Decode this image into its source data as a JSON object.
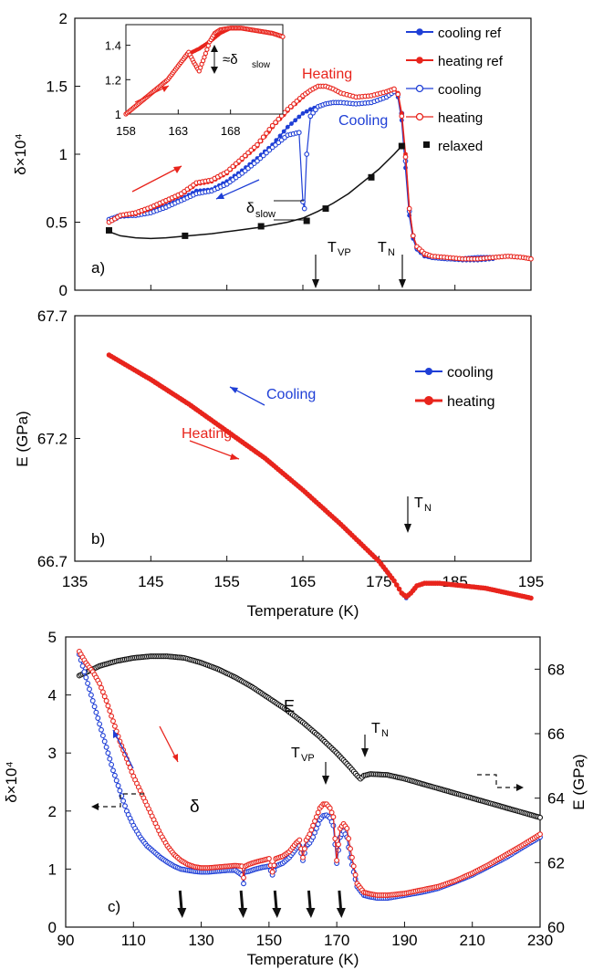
{
  "chart_data": [
    {
      "panel": "a)",
      "type": "line",
      "xlim": [
        135,
        195
      ],
      "ylim": [
        0,
        2
      ],
      "ylabel": "δ×10⁴",
      "yticks": [
        "0",
        "0.5",
        "1",
        "1.5",
        "2"
      ],
      "legend_position": "top-right",
      "series": [
        {
          "name": "cooling ref",
          "color": "#1f3fd6",
          "marker": "filled-circle",
          "x": [
            139.5,
            141,
            143,
            145,
            147,
            149,
            151,
            153,
            155,
            157,
            159,
            161,
            163,
            165,
            166,
            167,
            168,
            169,
            170,
            172,
            174,
            176,
            177,
            177.5,
            178,
            178.5,
            179,
            179.5,
            180,
            181,
            182,
            184,
            186,
            188,
            190
          ],
          "y": [
            0.5,
            0.54,
            0.55,
            0.58,
            0.62,
            0.67,
            0.73,
            0.74,
            0.8,
            0.88,
            0.97,
            1.07,
            1.2,
            1.3,
            1.33,
            1.35,
            1.37,
            1.38,
            1.38,
            1.37,
            1.38,
            1.42,
            1.46,
            1.42,
            1.25,
            0.9,
            0.55,
            0.38,
            0.3,
            0.25,
            0.24,
            0.23,
            0.22,
            0.22,
            0.23
          ]
        },
        {
          "name": "heating ref",
          "color": "#e8241c",
          "marker": "filled-circle",
          "x": [
            139.5,
            141,
            143,
            145,
            147,
            149,
            151,
            153,
            155,
            157,
            159,
            161,
            163,
            165,
            166,
            167,
            168,
            169,
            170,
            172,
            174,
            176,
            177,
            177.5,
            178,
            178.5,
            179,
            179.5,
            180,
            181,
            182,
            184,
            186,
            188,
            190
          ],
          "y": [
            0.5,
            0.55,
            0.56,
            0.6,
            0.65,
            0.7,
            0.78,
            0.8,
            0.86,
            0.96,
            1.06,
            1.2,
            1.32,
            1.42,
            1.47,
            1.5,
            1.5,
            1.48,
            1.45,
            1.42,
            1.43,
            1.46,
            1.48,
            1.45,
            1.3,
            1.0,
            0.6,
            0.4,
            0.32,
            0.26,
            0.25,
            0.24,
            0.23,
            0.23,
            0.24
          ]
        },
        {
          "name": "cooling",
          "color": "#1f3fd6",
          "marker": "open-circle",
          "x": [
            139.5,
            141,
            143,
            145,
            147,
            149,
            151,
            153,
            155,
            157,
            159,
            161,
            163,
            164.5,
            165,
            165.2,
            165.5,
            166,
            167,
            168,
            169,
            170,
            172,
            174,
            176,
            177,
            177.5,
            178,
            178.5,
            179,
            179.5,
            180,
            181,
            182,
            184,
            186,
            188,
            190
          ],
          "y": [
            0.52,
            0.55,
            0.55,
            0.57,
            0.61,
            0.66,
            0.71,
            0.73,
            0.78,
            0.86,
            0.95,
            1.05,
            1.14,
            1.16,
            0.65,
            0.6,
            1.0,
            1.28,
            1.35,
            1.37,
            1.38,
            1.38,
            1.37,
            1.38,
            1.42,
            1.46,
            1.44,
            1.3,
            0.95,
            0.58,
            0.4,
            0.31,
            0.26,
            0.24,
            0.23,
            0.23,
            0.24,
            0.24
          ]
        },
        {
          "name": "heating",
          "color": "#e8241c",
          "marker": "open-circle",
          "x": [
            139.5,
            141,
            143,
            145,
            147,
            149,
            151,
            153,
            155,
            157,
            159,
            161,
            163,
            165,
            166,
            167,
            168,
            169,
            170,
            172,
            174,
            176,
            177,
            177.5,
            178,
            178.5,
            179,
            179.5,
            180,
            181,
            182,
            184,
            186,
            188,
            190,
            192,
            194,
            195
          ],
          "y": [
            0.5,
            0.55,
            0.57,
            0.61,
            0.66,
            0.71,
            0.79,
            0.81,
            0.87,
            0.97,
            1.07,
            1.21,
            1.33,
            1.43,
            1.47,
            1.5,
            1.5,
            1.48,
            1.45,
            1.42,
            1.43,
            1.46,
            1.48,
            1.44,
            1.28,
            0.98,
            0.6,
            0.4,
            0.32,
            0.27,
            0.25,
            0.24,
            0.23,
            0.23,
            0.24,
            0.25,
            0.24,
            0.23
          ]
        },
        {
          "name": "relaxed",
          "color": "#111111",
          "marker": "filled-square",
          "x": [
            139.5,
            149.5,
            159.5,
            165.5,
            168,
            174,
            178
          ],
          "y": [
            0.44,
            0.4,
            0.47,
            0.51,
            0.6,
            0.83,
            1.06
          ]
        }
      ],
      "fit_curve": {
        "x": [
          139.5,
          141,
          143,
          145,
          147,
          149,
          151,
          153,
          155,
          157,
          159,
          161,
          163,
          165,
          167,
          169,
          171,
          173,
          175,
          177,
          178
        ],
        "y": [
          0.43,
          0.4,
          0.385,
          0.38,
          0.385,
          0.395,
          0.405,
          0.415,
          0.43,
          0.445,
          0.46,
          0.48,
          0.5,
          0.53,
          0.58,
          0.64,
          0.71,
          0.8,
          0.89,
          1.0,
          1.06
        ]
      },
      "annotations": [
        "Heating",
        "Cooling",
        "δslow",
        "TVP",
        "TN"
      ],
      "inset": {
        "xlim": [
          158,
          173
        ],
        "ylim": [
          1,
          1.52
        ],
        "xticks": [
          "158",
          "163",
          "168"
        ],
        "yticks": [
          "1",
          "1.2",
          "1.4"
        ],
        "annotation": "≈δslow",
        "series": [
          {
            "name": "heating",
            "x": [
              158,
              159,
              160,
              161,
              162,
              163,
              164,
              164.5,
              165,
              165.5,
              166,
              166.5,
              167,
              168,
              169,
              170,
              171,
              172,
              173
            ],
            "y": [
              1.0,
              1.05,
              1.1,
              1.15,
              1.2,
              1.28,
              1.36,
              1.3,
              1.25,
              1.33,
              1.42,
              1.47,
              1.49,
              1.5,
              1.5,
              1.49,
              1.48,
              1.47,
              1.45
            ]
          },
          {
            "name": "heating ref",
            "x": [
              158,
              159,
              160,
              161,
              162,
              163,
              164,
              165,
              166,
              167,
              168,
              169,
              170,
              171,
              172,
              173
            ],
            "y": [
              1.0,
              1.05,
              1.1,
              1.15,
              1.2,
              1.28,
              1.35,
              1.38,
              1.42,
              1.47,
              1.5,
              1.5,
              1.49,
              1.48,
              1.47,
              1.45
            ]
          }
        ]
      }
    },
    {
      "panel": "b)",
      "type": "line",
      "xlim": [
        135,
        195
      ],
      "ylim": [
        66.7,
        67.7
      ],
      "xlabel": "Temperature (K)",
      "ylabel": "E (GPa)",
      "xticks": [
        "135",
        "145",
        "155",
        "165",
        "175",
        "185",
        "195"
      ],
      "yticks": [
        "66.7",
        "67.2",
        "67.7"
      ],
      "legend_position": "top-right",
      "series": [
        {
          "name": "cooling",
          "color": "#1f3fd6",
          "x": [
            139.5,
            145,
            150,
            155,
            160,
            165,
            170,
            175,
            177,
            178,
            178.6,
            179.2,
            180,
            181,
            183,
            186,
            189,
            192,
            195
          ],
          "y": [
            67.54,
            67.44,
            67.34,
            67.23,
            67.12,
            66.99,
            66.85,
            66.7,
            66.62,
            66.57,
            66.55,
            66.57,
            66.6,
            66.61,
            66.61,
            66.6,
            66.59,
            66.57,
            66.55
          ]
        },
        {
          "name": "heating",
          "color": "#e8241c",
          "x": [
            139.5,
            145,
            150,
            155,
            160,
            165,
            170,
            175,
            177,
            178,
            178.6,
            179.2,
            180,
            181,
            183,
            186,
            189,
            192,
            195
          ],
          "y": [
            67.54,
            67.44,
            67.34,
            67.23,
            67.12,
            66.99,
            66.85,
            66.7,
            66.62,
            66.57,
            66.555,
            66.57,
            66.6,
            66.61,
            66.61,
            66.6,
            66.59,
            66.57,
            66.55
          ]
        }
      ],
      "annotations": [
        "Cooling",
        "Heating",
        "TN"
      ]
    },
    {
      "panel": "c)",
      "type": "line",
      "xlim": [
        90,
        230
      ],
      "ylim": [
        0,
        5
      ],
      "y2lim": [
        60,
        69
      ],
      "xlabel": "Temperature (K)",
      "ylabel": "δ×10⁴",
      "y2label": "E (GPa)",
      "xticks": [
        "90",
        "110",
        "130",
        "150",
        "170",
        "190",
        "210",
        "230"
      ],
      "yticks": [
        "0",
        "1",
        "2",
        "3",
        "4",
        "5"
      ],
      "y2ticks": [
        "60",
        "62",
        "64",
        "66",
        "68"
      ],
      "series": [
        {
          "name": "δ cooling",
          "color": "#1f3fd6",
          "x": [
            94,
            96,
            98,
            100,
            102,
            104,
            106,
            108,
            110,
            112,
            114,
            116,
            118,
            120,
            122,
            124,
            126,
            128,
            130,
            132,
            134,
            136,
            138,
            140,
            142,
            142.5,
            143,
            144,
            146,
            148,
            150,
            151,
            152,
            154,
            156,
            158,
            159,
            160,
            161,
            162,
            163,
            164,
            165,
            166,
            167,
            168,
            169,
            170,
            171,
            172,
            173,
            174,
            176,
            178,
            180,
            182,
            185,
            190,
            195,
            200,
            205,
            210,
            215,
            220,
            225,
            230
          ],
          "y": [
            4.7,
            4.3,
            3.9,
            3.5,
            3.1,
            2.7,
            2.35,
            2.0,
            1.75,
            1.55,
            1.4,
            1.3,
            1.2,
            1.12,
            1.05,
            1.0,
            0.98,
            0.96,
            0.95,
            0.95,
            0.96,
            0.97,
            0.98,
            0.98,
            0.9,
            0.75,
            0.95,
            0.96,
            1.0,
            1.03,
            1.05,
            0.9,
            1.05,
            1.1,
            1.2,
            1.35,
            1.4,
            1.15,
            1.4,
            1.45,
            1.55,
            1.7,
            1.85,
            1.92,
            1.93,
            1.88,
            1.75,
            1.1,
            1.55,
            1.65,
            1.55,
            1.2,
            0.7,
            0.55,
            0.52,
            0.5,
            0.5,
            0.55,
            0.6,
            0.67,
            0.78,
            0.9,
            1.05,
            1.2,
            1.38,
            1.55
          ]
        },
        {
          "name": "δ heating",
          "color": "#e8241c",
          "x": [
            94,
            96,
            98,
            100,
            102,
            104,
            106,
            108,
            110,
            112,
            114,
            116,
            118,
            120,
            122,
            124,
            126,
            128,
            130,
            132,
            134,
            136,
            138,
            140,
            142,
            142.5,
            143,
            144,
            146,
            148,
            150,
            151,
            152,
            154,
            156,
            158,
            159,
            160,
            161,
            162,
            163,
            164,
            165,
            166,
            167,
            168,
            169,
            170,
            171,
            172,
            173,
            174,
            176,
            178,
            180,
            182,
            185,
            190,
            195,
            200,
            205,
            210,
            215,
            220,
            225,
            230
          ],
          "y": [
            4.75,
            4.55,
            4.4,
            4.2,
            3.9,
            3.55,
            3.2,
            2.9,
            2.6,
            2.35,
            2.1,
            1.85,
            1.6,
            1.4,
            1.25,
            1.15,
            1.08,
            1.04,
            1.02,
            1.02,
            1.03,
            1.04,
            1.05,
            1.06,
            1.05,
            0.85,
            1.05,
            1.08,
            1.12,
            1.15,
            1.18,
            0.95,
            1.18,
            1.22,
            1.3,
            1.45,
            1.5,
            1.2,
            1.5,
            1.6,
            1.75,
            1.9,
            2.05,
            2.12,
            2.12,
            2.05,
            1.9,
            1.15,
            1.7,
            1.78,
            1.7,
            1.35,
            0.75,
            0.6,
            0.57,
            0.55,
            0.55,
            0.58,
            0.64,
            0.7,
            0.8,
            0.93,
            1.08,
            1.25,
            1.42,
            1.6
          ]
        },
        {
          "name": "E",
          "axis": "right",
          "color": "#111111",
          "x": [
            94,
            100,
            105,
            110,
            115,
            120,
            125,
            130,
            135,
            140,
            145,
            150,
            155,
            160,
            165,
            170,
            174,
            176,
            177,
            178,
            180,
            185,
            190,
            200,
            210,
            220,
            230
          ],
          "y": [
            67.8,
            68.1,
            68.25,
            68.35,
            68.4,
            68.4,
            68.35,
            68.2,
            68.0,
            67.75,
            67.45,
            67.1,
            66.75,
            66.35,
            65.9,
            65.4,
            64.95,
            64.7,
            64.6,
            64.7,
            64.75,
            64.72,
            64.6,
            64.3,
            64.0,
            63.7,
            63.4
          ]
        }
      ],
      "annotations": [
        "E",
        "δ",
        "TVP",
        "TN"
      ],
      "marked_temperatures": [
        124,
        142,
        152,
        162,
        171
      ]
    }
  ],
  "labels": {
    "TVP_main": "T",
    "TVP_sub": "VP",
    "TN_main": "T",
    "TN_sub": "N",
    "delta_slow_main": "δ",
    "delta_slow_sub": "slow",
    "approx_delta_slow": "≈δ",
    "approx_delta_slow_sub": "slow"
  },
  "colors": {
    "cooling": "#1f3fd6",
    "heating": "#e8241c",
    "relaxed": "#111111",
    "axis": "#111111"
  }
}
